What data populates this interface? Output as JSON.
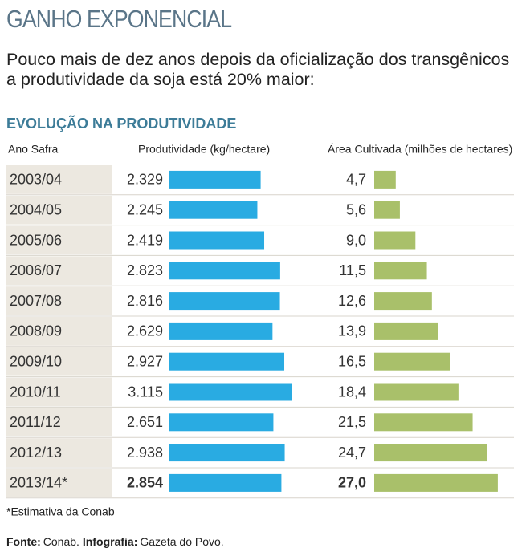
{
  "chart_data": {
    "type": "bar",
    "title": "GANHO EXPONENCIAL",
    "subtitle": "Pouco mais de dez anos depois da oficialização dos transgênicos a produtividade da soja está 20% maior:",
    "section_title": "EVOLUÇÃO NA PRODUTIVIDADE",
    "category_header": "Ano Safra",
    "categories": [
      "2003/04",
      "2004/05",
      "2005/06",
      "2006/07",
      "2007/08",
      "2008/09",
      "2009/10",
      "2010/11",
      "2011/12",
      "2012/13",
      "2013/14*"
    ],
    "series": [
      {
        "name": "Produtividade (kg/hectare)",
        "color": "#29abe2",
        "values": [
          2329,
          2245,
          2419,
          2823,
          2816,
          2629,
          2927,
          3115,
          2651,
          2938,
          2854
        ],
        "value_labels": [
          "2.329",
          "2.245",
          "2.419",
          "2.823",
          "2.816",
          "2.629",
          "2.927",
          "3.115",
          "2.651",
          "2.938",
          "2.854"
        ]
      },
      {
        "name": "Área Cultivada (milhões de hectares)",
        "color": "#a9c06a",
        "values": [
          4.7,
          5.6,
          9.0,
          11.5,
          12.6,
          13.9,
          16.5,
          18.4,
          21.5,
          24.7,
          27.0
        ],
        "value_labels": [
          "4,7",
          "5,6",
          "9,0",
          "11,5",
          "12,6",
          "13,9",
          "16,5",
          "18,4",
          "21,5",
          "24,7",
          "27,0"
        ]
      }
    ],
    "footnote": "*Estimativa da Conab",
    "source": [
      {
        "label": "Fonte:",
        "text": "Conab."
      },
      {
        "label": "Infografia:",
        "text": "Gazeta do Povo."
      }
    ]
  }
}
